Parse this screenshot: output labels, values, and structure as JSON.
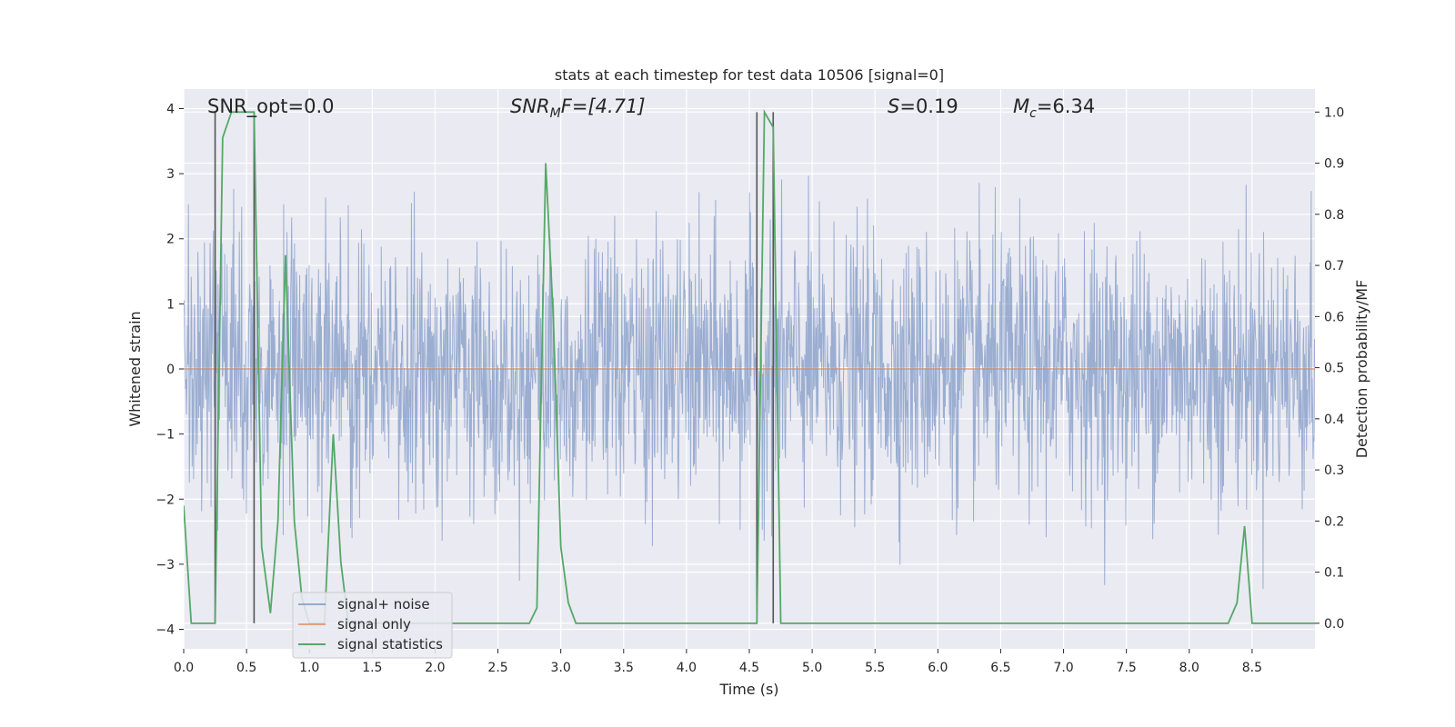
{
  "chart_data": {
    "type": "line",
    "title": "stats at each timestep for test data 10506 [signal=0]",
    "xlabel": "Time (s)",
    "ylabel": "Whitened strain",
    "ylabel_right": "Detection probability/MF",
    "xlim": [
      0.0,
      9.0
    ],
    "ylim": [
      -4.3,
      4.3
    ],
    "ylim_right": [
      -0.05,
      1.045
    ],
    "x_ticks": [
      0.0,
      0.5,
      1.0,
      1.5,
      2.0,
      2.5,
      3.0,
      3.5,
      4.0,
      4.5,
      5.0,
      5.5,
      6.0,
      6.5,
      7.0,
      7.5,
      8.0,
      8.5
    ],
    "x_tick_labels": [
      "0.0",
      "0.5",
      "1.0",
      "1.5",
      "2.0",
      "2.5",
      "3.0",
      "3.5",
      "4.0",
      "4.5",
      "5.0",
      "5.5",
      "6.0",
      "6.5",
      "7.0",
      "7.5",
      "8.0",
      "8.5"
    ],
    "y_ticks": [
      -4,
      -3,
      -2,
      -1,
      0,
      1,
      2,
      3,
      4
    ],
    "y_tick_labels": [
      "−4",
      "−3",
      "−2",
      "−1",
      "0",
      "1",
      "2",
      "3",
      "4"
    ],
    "y_right_ticks": [
      0.0,
      0.1,
      0.2,
      0.3,
      0.4,
      0.5,
      0.6,
      0.7,
      0.8,
      0.9,
      1.0
    ],
    "y_right_tick_labels": [
      "0.0",
      "0.1",
      "0.2",
      "0.3",
      "0.4",
      "0.5",
      "0.6",
      "0.7",
      "0.8",
      "0.9",
      "1.0"
    ],
    "grid": true,
    "annotations": {
      "snr_opt": "SNR_opt=0.0",
      "snr_mf_sym": "SNR",
      "snr_mf_sub": "M",
      "snr_mf_rest": "F=[4.71]",
      "s_sym": "S",
      "s_val": "=0.19",
      "mc_sym": "M",
      "mc_sub": "c",
      "mc_val": "=6.34"
    },
    "legend": {
      "location": "lower-left",
      "entries": [
        "signal+ noise",
        "signal only",
        "signal statistics"
      ]
    },
    "series": [
      {
        "name": "signal+ noise",
        "axis": "left",
        "color": "#4c72b0",
        "kind": "noise",
        "duration": 9.0,
        "envelope_sigma": 1.0
      },
      {
        "name": "signal only",
        "axis": "left",
        "color": "#dd8452",
        "x": [
          0.0,
          9.0
        ],
        "values": [
          0.0,
          0.0
        ]
      },
      {
        "name": "signal statistics",
        "axis": "right",
        "color": "#55a868",
        "x": [
          0.0,
          0.06,
          0.25,
          0.31,
          0.38,
          0.56,
          0.62,
          0.69,
          0.75,
          0.81,
          0.88,
          0.94,
          1.0,
          1.06,
          1.12,
          1.19,
          1.25,
          1.31,
          1.38,
          2.75,
          2.81,
          2.88,
          2.94,
          3.0,
          3.06,
          3.12,
          4.56,
          4.62,
          4.69,
          4.75,
          8.31,
          8.38,
          8.44,
          8.5,
          8.56,
          9.0
        ],
        "values": [
          0.23,
          0.0,
          0.0,
          0.95,
          1.0,
          1.0,
          0.15,
          0.02,
          0.2,
          0.72,
          0.2,
          0.05,
          0.0,
          0.0,
          0.0,
          0.37,
          0.12,
          0.0,
          0.0,
          0.0,
          0.03,
          0.9,
          0.6,
          0.15,
          0.04,
          0.0,
          0.0,
          1.0,
          0.97,
          0.0,
          0.0,
          0.04,
          0.19,
          0.0,
          0.0,
          0.0
        ]
      }
    ],
    "vertical_markers": [
      {
        "x": 0.25,
        "y_top": 1.0,
        "y_bottom": 0.0
      },
      {
        "x": 0.56,
        "y_top": 1.0,
        "y_bottom": 0.0
      },
      {
        "x": 4.56,
        "y_top": 1.0,
        "y_bottom": 0.0
      },
      {
        "x": 4.69,
        "y_top": 1.0,
        "y_bottom": 0.0
      }
    ]
  },
  "colors": {
    "axes_bg": "#eaeaf2",
    "grid": "#ffffff",
    "text": "#262626",
    "marker": "#555555"
  }
}
